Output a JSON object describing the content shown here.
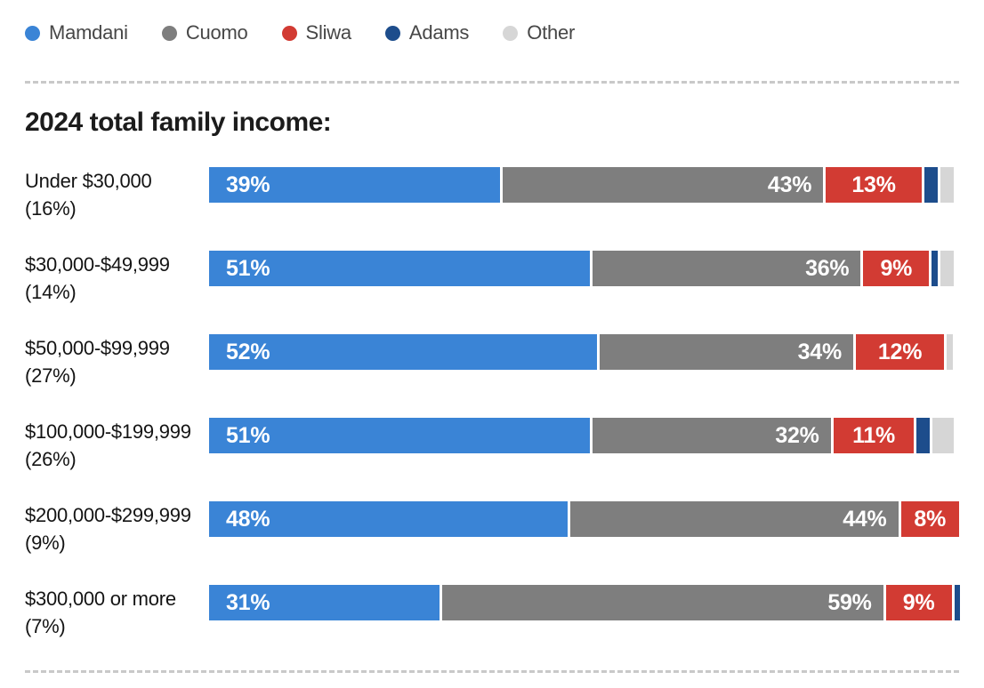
{
  "title": "2024 total family income:",
  "legend": {
    "items": [
      {
        "label": "Mamdani",
        "color": "#3a84d6"
      },
      {
        "label": "Cuomo",
        "color": "#7e7e7e"
      },
      {
        "label": "Sliwa",
        "color": "#d23b33"
      },
      {
        "label": "Adams",
        "color": "#1d4d8c"
      },
      {
        "label": "Other",
        "color": "#d6d6d6"
      }
    ]
  },
  "chart_data": {
    "type": "bar",
    "variant": "horizontal-stacked",
    "unit": "%",
    "title": "2024 total family income:",
    "legend_position": "top",
    "value_labels": "inside",
    "xlim": [
      0,
      100
    ],
    "grid": false,
    "series": [
      {
        "name": "Mamdani",
        "color": "#3a84d6",
        "value_align": "left",
        "show_value": true
      },
      {
        "name": "Cuomo",
        "color": "#7e7e7e",
        "value_align": "right",
        "show_value": true
      },
      {
        "name": "Sliwa",
        "color": "#d23b33",
        "value_align": "center",
        "show_value": true
      },
      {
        "name": "Adams",
        "color": "#1d4d8c",
        "value_align": "none",
        "show_value": false
      },
      {
        "name": "Other",
        "color": "#d6d6d6",
        "value_align": "none",
        "show_value": false
      }
    ],
    "rows": [
      {
        "category": "Under $30,000",
        "group_share": "(16%)",
        "values": {
          "Mamdani": 39,
          "Cuomo": 43,
          "Sliwa": 13,
          "Adams": 2,
          "Other": 2
        }
      },
      {
        "category": "$30,000-$49,999",
        "group_share": "(14%)",
        "values": {
          "Mamdani": 51,
          "Cuomo": 36,
          "Sliwa": 9,
          "Adams": 1,
          "Other": 2
        }
      },
      {
        "category": "$50,000-$99,999",
        "group_share": "(27%)",
        "values": {
          "Mamdani": 52,
          "Cuomo": 34,
          "Sliwa": 12,
          "Adams": 0,
          "Other": 1
        }
      },
      {
        "category": "$100,000-$199,999",
        "group_share": "(26%)",
        "values": {
          "Mamdani": 51,
          "Cuomo": 32,
          "Sliwa": 11,
          "Adams": 2,
          "Other": 3
        }
      },
      {
        "category": "$200,000-$299,999",
        "group_share": "(9%)",
        "values": {
          "Mamdani": 48,
          "Cuomo": 44,
          "Sliwa": 8,
          "Adams": 0,
          "Other": 0
        }
      },
      {
        "category": "$300,000 or more",
        "group_share": "(7%)",
        "values": {
          "Mamdani": 31,
          "Cuomo": 59,
          "Sliwa": 9,
          "Adams": 1,
          "Other": 0
        }
      }
    ]
  }
}
